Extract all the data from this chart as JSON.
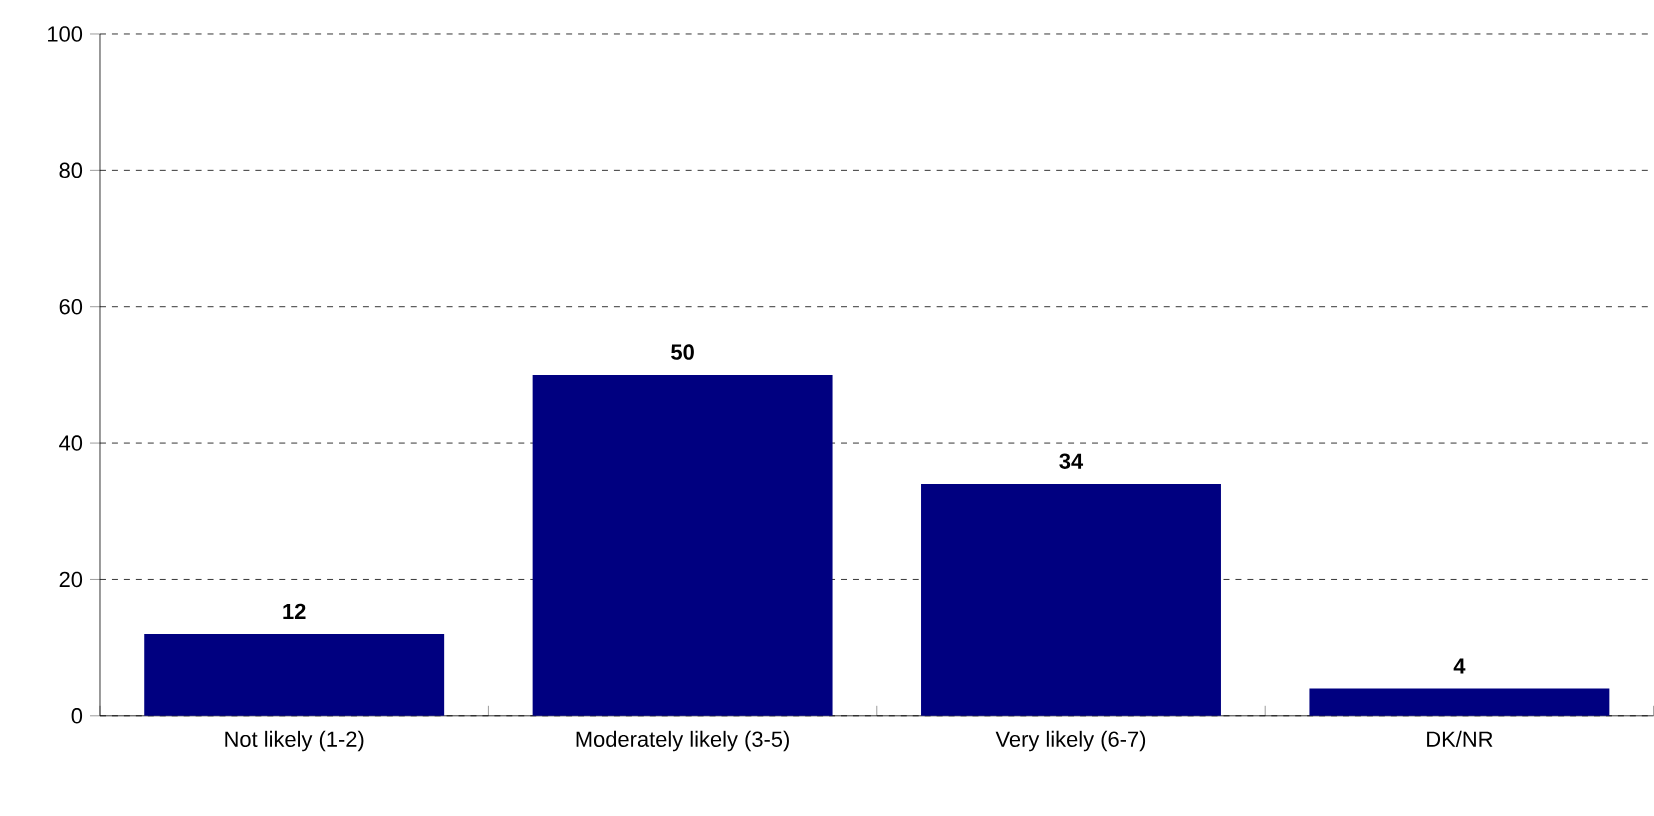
{
  "chart_data": {
    "type": "bar",
    "categories": [
      "Not likely (1-2)",
      "Moderately likely (3-5)",
      "Very likely (6-7)",
      "DK/NR"
    ],
    "values": [
      12,
      50,
      34,
      4
    ],
    "color": "#000080",
    "ylim": [
      0,
      100
    ],
    "yticks": [
      0,
      20,
      40,
      60,
      80,
      100
    ],
    "grid": "y",
    "data_labels": true
  }
}
